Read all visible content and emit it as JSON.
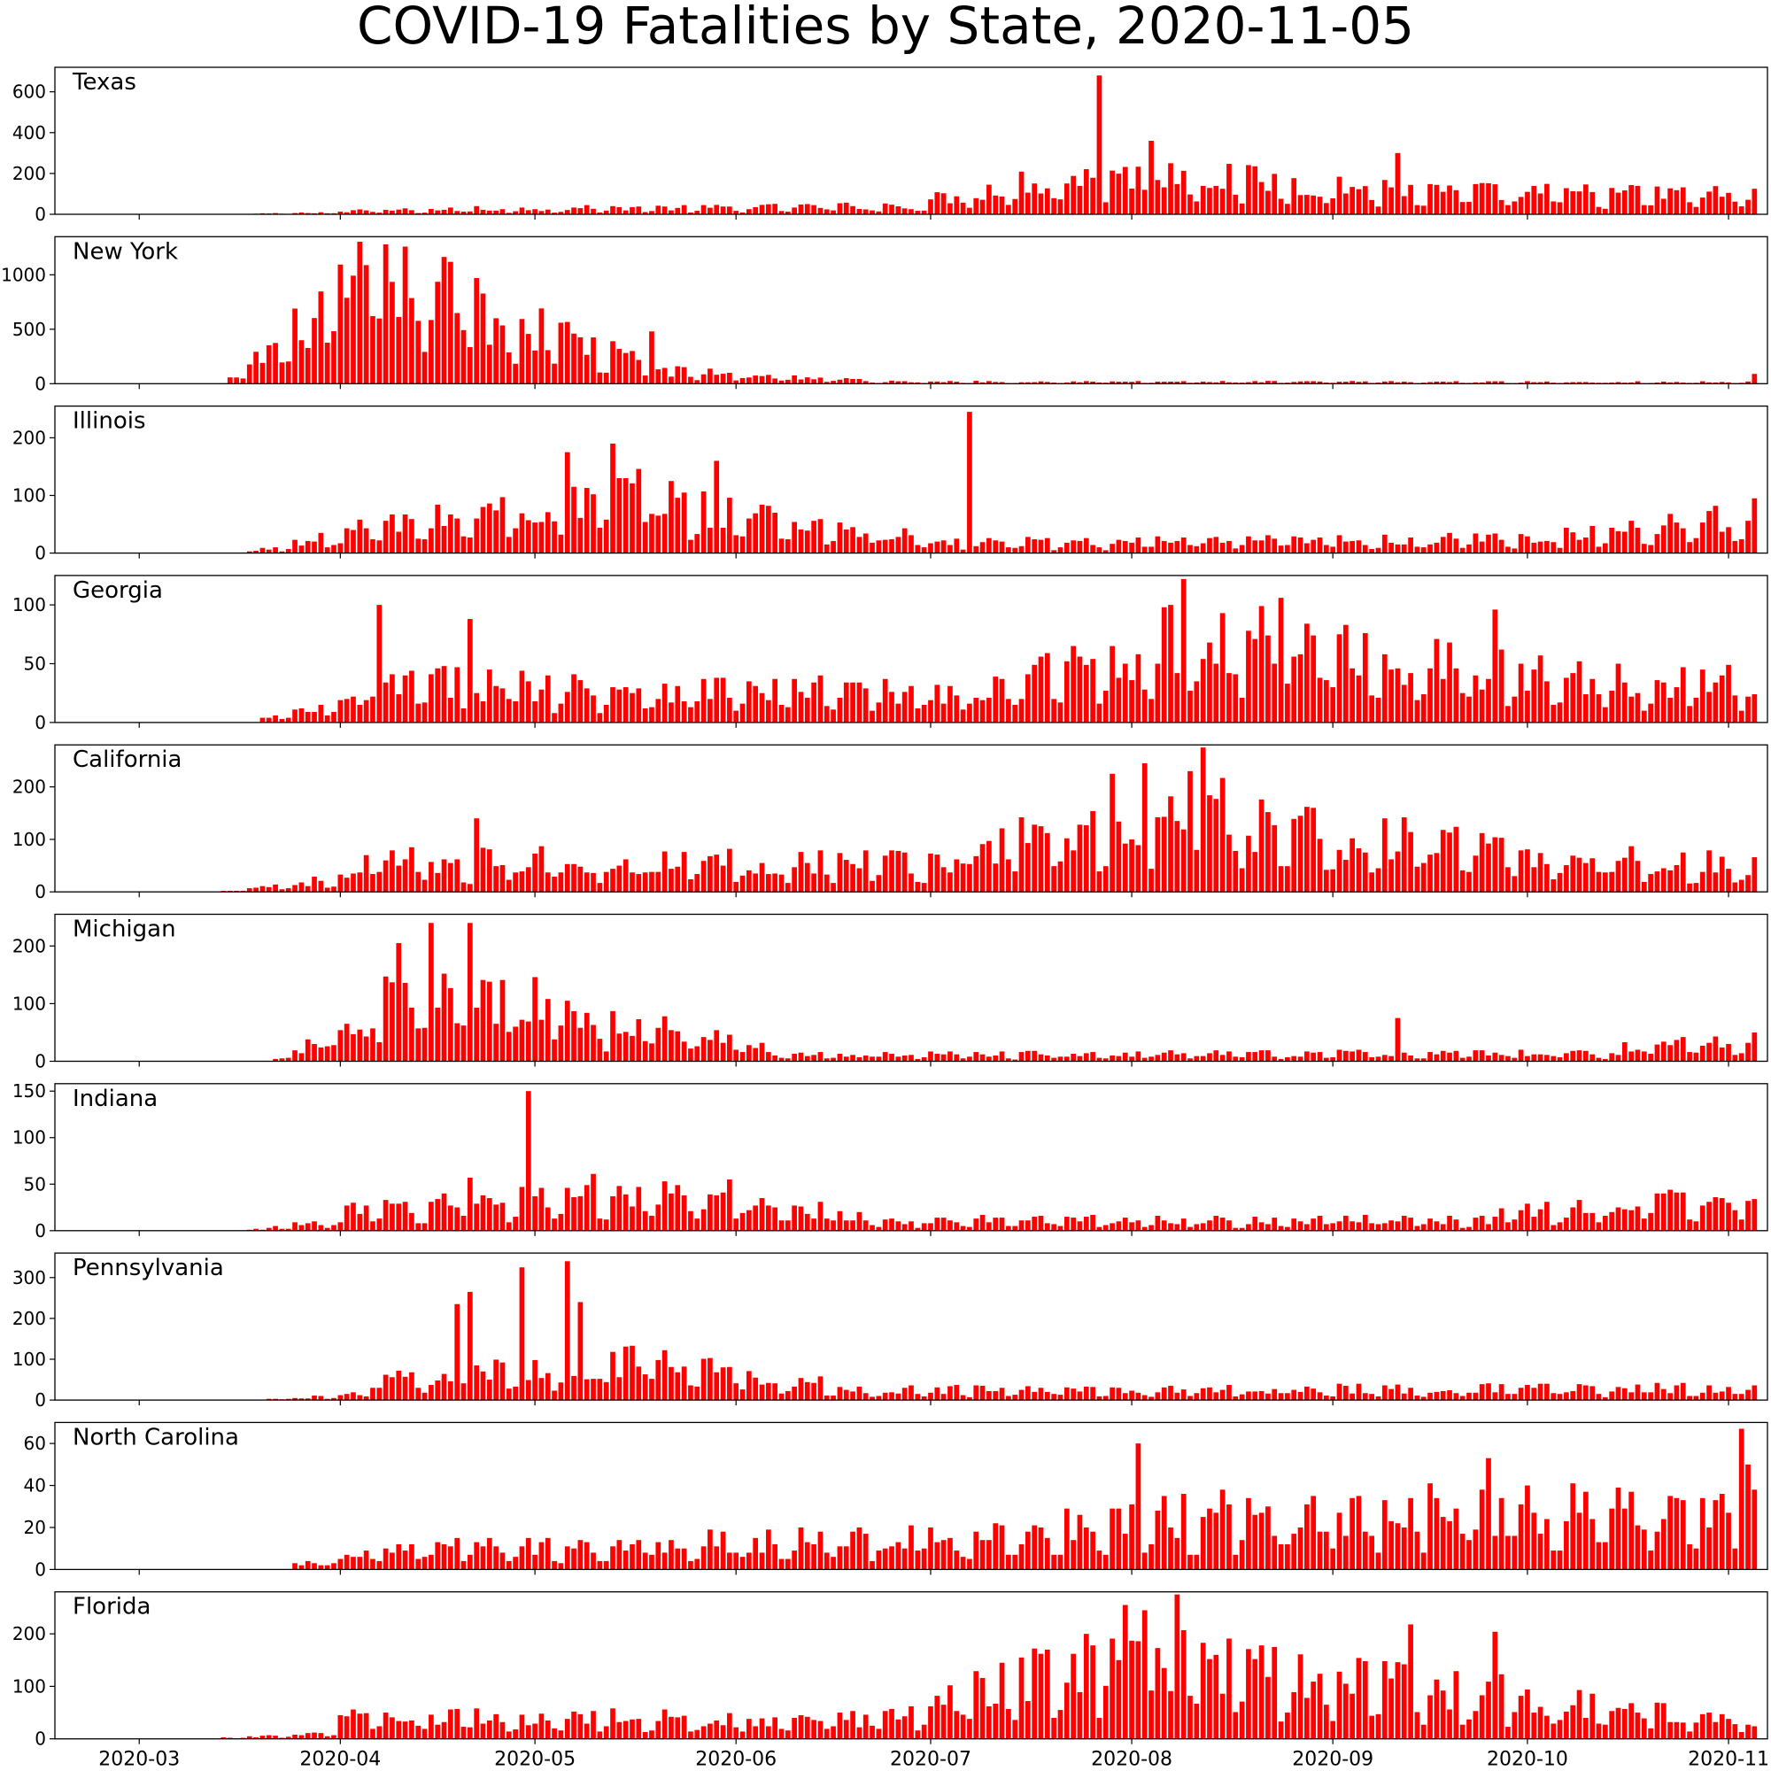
{
  "title": "COVID-19 Fatalities by State, 2020-11-05",
  "colors": {
    "bar": "#ff0000",
    "frame": "#000000"
  },
  "chart_data": {
    "type": "bar",
    "x_axis": {
      "start": "2020-02-17",
      "end": "2020-11-07",
      "ticks": [
        "2020-03",
        "2020-04",
        "2020-05",
        "2020-06",
        "2020-07",
        "2020-08",
        "2020-09",
        "2020-10",
        "2020-11"
      ]
    },
    "series": [
      {
        "name": "Texas",
        "ylim": [
          0,
          720
        ],
        "yticks": [
          "0",
          "200",
          "400",
          "600"
        ],
        "segments": [
          {
            "start": "2020-03-19",
            "end": "2020-04-02",
            "from": 3,
            "to": 12
          },
          {
            "start": "2020-04-03",
            "end": "2020-05-20",
            "from": 18,
            "to": 35
          },
          {
            "start": "2020-05-21",
            "end": "2020-06-30",
            "from": 30,
            "to": 45
          },
          {
            "start": "2020-07-01",
            "end": "2020-07-14",
            "from": 70,
            "to": 150
          },
          {
            "start": "2020-07-15",
            "end": "2020-08-12",
            "from": 160,
            "to": 220
          },
          {
            "start": "2020-08-13",
            "end": "2020-09-15",
            "from": 180,
            "to": 120
          },
          {
            "start": "2020-09-16",
            "end": "2020-11-05",
            "from": 110,
            "to": 100
          }
        ],
        "peaks": [
          {
            "date": "2020-07-27",
            "value": 680
          },
          {
            "date": "2020-08-04",
            "value": 360
          },
          {
            "date": "2020-09-11",
            "value": 300
          },
          {
            "date": "2020-04-22",
            "value": 40
          }
        ]
      },
      {
        "name": "New York",
        "ylim": [
          0,
          1350
        ],
        "yticks": [
          "0",
          "500",
          "1000"
        ],
        "segments": [
          {
            "start": "2020-03-14",
            "end": "2020-04-07",
            "from": 3,
            "to": 1050
          },
          {
            "start": "2020-04-08",
            "end": "2020-04-20",
            "from": 1000,
            "to": 800
          },
          {
            "start": "2020-04-21",
            "end": "2020-05-20",
            "from": 700,
            "to": 150
          },
          {
            "start": "2020-05-21",
            "end": "2020-06-20",
            "from": 120,
            "to": 35
          },
          {
            "start": "2020-06-21",
            "end": "2020-11-05",
            "from": 20,
            "to": 15
          }
        ],
        "peaks": [
          {
            "date": "2020-04-08",
            "value": 1280
          },
          {
            "date": "2020-04-22",
            "value": 970
          },
          {
            "date": "2020-05-05",
            "value": 560
          },
          {
            "date": "2020-05-19",
            "value": 480
          },
          {
            "date": "2020-11-05",
            "value": 90
          }
        ]
      },
      {
        "name": "Illinois",
        "ylim": [
          0,
          255
        ],
        "yticks": [
          "0",
          "100",
          "200"
        ],
        "segments": [
          {
            "start": "2020-03-17",
            "end": "2020-04-01",
            "from": 1,
            "to": 30
          },
          {
            "start": "2020-04-02",
            "end": "2020-05-20",
            "from": 40,
            "to": 110
          },
          {
            "start": "2020-05-21",
            "end": "2020-06-30",
            "from": 90,
            "to": 25
          },
          {
            "start": "2020-07-01",
            "end": "2020-09-30",
            "from": 18,
            "to": 25
          },
          {
            "start": "2020-10-01",
            "end": "2020-11-05",
            "from": 25,
            "to": 70
          }
        ],
        "peaks": [
          {
            "date": "2020-07-07",
            "value": 245
          },
          {
            "date": "2020-05-13",
            "value": 190
          },
          {
            "date": "2020-05-06",
            "value": 175
          },
          {
            "date": "2020-05-29",
            "value": 160
          },
          {
            "date": "2020-11-05",
            "value": 95
          }
        ]
      },
      {
        "name": "Georgia",
        "ylim": [
          0,
          125
        ],
        "yticks": [
          "0",
          "50",
          "100"
        ],
        "segments": [
          {
            "start": "2020-03-20",
            "end": "2020-04-05",
            "from": 3,
            "to": 20
          },
          {
            "start": "2020-04-06",
            "end": "2020-07-10",
            "from": 35,
            "to": 25
          },
          {
            "start": "2020-07-11",
            "end": "2020-08-10",
            "from": 30,
            "to": 75
          },
          {
            "start": "2020-08-11",
            "end": "2020-09-20",
            "from": 75,
            "to": 50
          },
          {
            "start": "2020-09-21",
            "end": "2020-11-05",
            "from": 45,
            "to": 35
          }
        ],
        "peaks": [
          {
            "date": "2020-08-09",
            "value": 122
          },
          {
            "date": "2020-04-07",
            "value": 100
          },
          {
            "date": "2020-08-24",
            "value": 106
          },
          {
            "date": "2020-09-26",
            "value": 96
          },
          {
            "date": "2020-04-21",
            "value": 88
          }
        ]
      },
      {
        "name": "California",
        "ylim": [
          0,
          280
        ],
        "yticks": [
          "0",
          "100",
          "200"
        ],
        "segments": [
          {
            "start": "2020-03-14",
            "end": "2020-04-04",
            "from": 2,
            "to": 30
          },
          {
            "start": "2020-04-05",
            "end": "2020-07-05",
            "from": 60,
            "to": 60
          },
          {
            "start": "2020-07-06",
            "end": "2020-08-15",
            "from": 90,
            "to": 150
          },
          {
            "start": "2020-08-16",
            "end": "2020-09-20",
            "from": 130,
            "to": 90
          },
          {
            "start": "2020-09-21",
            "end": "2020-11-05",
            "from": 80,
            "to": 50
          }
        ],
        "peaks": [
          {
            "date": "2020-08-12",
            "value": 275
          },
          {
            "date": "2020-08-03",
            "value": 245
          },
          {
            "date": "2020-08-10",
            "value": 230
          },
          {
            "date": "2020-07-29",
            "value": 225
          },
          {
            "date": "2020-04-22",
            "value": 140
          }
        ]
      },
      {
        "name": "Michigan",
        "ylim": [
          0,
          255
        ],
        "yticks": [
          "0",
          "100",
          "200"
        ],
        "segments": [
          {
            "start": "2020-03-22",
            "end": "2020-04-05",
            "from": 3,
            "to": 70
          },
          {
            "start": "2020-04-06",
            "end": "2020-05-05",
            "from": 110,
            "to": 100
          },
          {
            "start": "2020-05-06",
            "end": "2020-06-05",
            "from": 80,
            "to": 30
          },
          {
            "start": "2020-06-06",
            "end": "2020-10-15",
            "from": 12,
            "to": 15
          },
          {
            "start": "2020-10-16",
            "end": "2020-11-05",
            "from": 25,
            "to": 40
          }
        ],
        "peaks": [
          {
            "date": "2020-04-15",
            "value": 240
          },
          {
            "date": "2020-04-21",
            "value": 240
          },
          {
            "date": "2020-04-10",
            "value": 205
          },
          {
            "date": "2020-09-11",
            "value": 75
          },
          {
            "date": "2020-11-05",
            "value": 50
          }
        ]
      },
      {
        "name": "Indiana",
        "ylim": [
          0,
          158
        ],
        "yticks": [
          "0",
          "50",
          "100",
          "150"
        ],
        "segments": [
          {
            "start": "2020-03-18",
            "end": "2020-04-01",
            "from": 1,
            "to": 12
          },
          {
            "start": "2020-04-02",
            "end": "2020-05-15",
            "from": 20,
            "to": 45
          },
          {
            "start": "2020-05-16",
            "end": "2020-06-20",
            "from": 40,
            "to": 18
          },
          {
            "start": "2020-06-21",
            "end": "2020-09-25",
            "from": 12,
            "to": 12
          },
          {
            "start": "2020-09-26",
            "end": "2020-11-05",
            "from": 18,
            "to": 40
          }
        ],
        "peaks": [
          {
            "date": "2020-04-30",
            "value": 150
          },
          {
            "date": "2020-05-31",
            "value": 55
          },
          {
            "date": "2020-04-21",
            "value": 57
          }
        ]
      },
      {
        "name": "Pennsylvania",
        "ylim": [
          0,
          360
        ],
        "yticks": [
          "0",
          "100",
          "200",
          "300"
        ],
        "segments": [
          {
            "start": "2020-03-21",
            "end": "2020-04-05",
            "from": 2,
            "to": 15
          },
          {
            "start": "2020-04-06",
            "end": "2020-05-20",
            "from": 50,
            "to": 100
          },
          {
            "start": "2020-05-21",
            "end": "2020-06-15",
            "from": 90,
            "to": 40
          },
          {
            "start": "2020-06-16",
            "end": "2020-11-05",
            "from": 25,
            "to": 30
          }
        ],
        "peaks": [
          {
            "date": "2020-05-06",
            "value": 340
          },
          {
            "date": "2020-04-29",
            "value": 325
          },
          {
            "date": "2020-04-21",
            "value": 265
          },
          {
            "date": "2020-04-19",
            "value": 235
          },
          {
            "date": "2020-05-08",
            "value": 240
          }
        ]
      },
      {
        "name": "North Carolina",
        "ylim": [
          0,
          70
        ],
        "yticks": [
          "0",
          "20",
          "40",
          "60"
        ],
        "segments": [
          {
            "start": "2020-03-25",
            "end": "2020-04-05",
            "from": 2,
            "to": 6
          },
          {
            "start": "2020-04-06",
            "end": "2020-06-30",
            "from": 10,
            "to": 15
          },
          {
            "start": "2020-07-01",
            "end": "2020-08-15",
            "from": 15,
            "to": 28
          },
          {
            "start": "2020-08-16",
            "end": "2020-11-05",
            "from": 28,
            "to": 30
          }
        ],
        "peaks": [
          {
            "date": "2020-11-03",
            "value": 67
          },
          {
            "date": "2020-08-02",
            "value": 60
          },
          {
            "date": "2020-09-25",
            "value": 53
          },
          {
            "date": "2020-11-04",
            "value": 50
          }
        ]
      },
      {
        "name": "Florida",
        "ylim": [
          0,
          280
        ],
        "yticks": [
          "0",
          "100",
          "200"
        ],
        "segments": [
          {
            "start": "2020-03-14",
            "end": "2020-03-31",
            "from": 2,
            "to": 12
          },
          {
            "start": "2020-04-01",
            "end": "2020-06-25",
            "from": 40,
            "to": 40
          },
          {
            "start": "2020-06-26",
            "end": "2020-07-31",
            "from": 50,
            "to": 170
          },
          {
            "start": "2020-08-01",
            "end": "2020-09-15",
            "from": 160,
            "to": 100
          },
          {
            "start": "2020-09-16",
            "end": "2020-11-05",
            "from": 100,
            "to": 40
          }
        ],
        "peaks": [
          {
            "date": "2020-08-08",
            "value": 275
          },
          {
            "date": "2020-07-31",
            "value": 255
          },
          {
            "date": "2020-08-03",
            "value": 245
          },
          {
            "date": "2020-09-13",
            "value": 218
          },
          {
            "date": "2020-09-26",
            "value": 204
          }
        ]
      }
    ]
  }
}
